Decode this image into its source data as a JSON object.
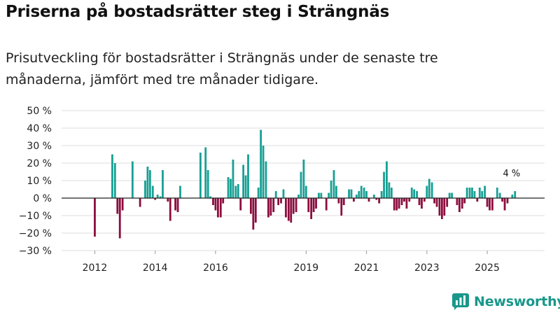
{
  "title": "Priserna på bostadsrätter steg i Strängnäs",
  "subtitle": "Prisutveckling för bostadsrätter i Strängnäs under de senaste tre månaderna, jämfört med tre månader tidigare.",
  "brand": {
    "name": "Newsworthy"
  },
  "colors": {
    "positive": "#17a094",
    "negative": "#8c0d3e",
    "grid": "#dedede",
    "zero": "#222222"
  },
  "chart_data": {
    "type": "bar",
    "title": "Priserna på bostadsrätter steg i Strängnäs",
    "xlabel": "",
    "ylabel": "",
    "ylim": [
      -30,
      50
    ],
    "y_ticks": [
      {
        "value": 50,
        "label": "50 %"
      },
      {
        "value": 40,
        "label": "40 %"
      },
      {
        "value": 30,
        "label": "30 %"
      },
      {
        "value": 20,
        "label": "20 %"
      },
      {
        "value": 10,
        "label": "10 %"
      },
      {
        "value": 0,
        "label": "0 %"
      },
      {
        "value": -10,
        "label": "−10 %"
      },
      {
        "value": -20,
        "label": "−20 %"
      },
      {
        "value": -30,
        "label": "−30 %"
      }
    ],
    "x_range": [
      2010.9,
      2026.9
    ],
    "x_ticks": [
      {
        "value": 2012,
        "label": "2012"
      },
      {
        "value": 2014,
        "label": "2014"
      },
      {
        "value": 2016,
        "label": "2016"
      },
      {
        "value": 2019,
        "label": "2019"
      },
      {
        "value": 2021,
        "label": "2021"
      },
      {
        "value": 2023,
        "label": "2023"
      },
      {
        "value": 2025,
        "label": "2025"
      }
    ],
    "annotation": {
      "label": "4 %",
      "x": 2025.83,
      "value": 4
    },
    "series": [
      {
        "name": "Prisutveckling",
        "points": [
          [
            2012.0,
            -22
          ],
          [
            2012.58,
            25
          ],
          [
            2012.67,
            20
          ],
          [
            2012.75,
            -9
          ],
          [
            2012.83,
            -23
          ],
          [
            2012.92,
            -7
          ],
          [
            2013.25,
            21
          ],
          [
            2013.5,
            -5
          ],
          [
            2013.67,
            10
          ],
          [
            2013.75,
            18
          ],
          [
            2013.83,
            16
          ],
          [
            2013.92,
            7
          ],
          [
            2014.0,
            -1
          ],
          [
            2014.08,
            2
          ],
          [
            2014.17,
            1
          ],
          [
            2014.25,
            16
          ],
          [
            2014.42,
            -2
          ],
          [
            2014.5,
            -13
          ],
          [
            2014.67,
            -7
          ],
          [
            2014.75,
            -8
          ],
          [
            2014.83,
            7
          ],
          [
            2015.5,
            26
          ],
          [
            2015.67,
            29
          ],
          [
            2015.75,
            16
          ],
          [
            2015.83,
            1
          ],
          [
            2015.92,
            -4
          ],
          [
            2016.0,
            -7
          ],
          [
            2016.08,
            -11
          ],
          [
            2016.17,
            -11
          ],
          [
            2016.25,
            -3
          ],
          [
            2016.42,
            12
          ],
          [
            2016.5,
            11
          ],
          [
            2016.58,
            22
          ],
          [
            2016.67,
            7
          ],
          [
            2016.75,
            8
          ],
          [
            2016.83,
            -7
          ],
          [
            2016.92,
            19
          ],
          [
            2017.0,
            13
          ],
          [
            2017.08,
            25
          ],
          [
            2017.17,
            -9
          ],
          [
            2017.25,
            -18
          ],
          [
            2017.33,
            -14
          ],
          [
            2017.42,
            6
          ],
          [
            2017.5,
            39
          ],
          [
            2017.58,
            30
          ],
          [
            2017.67,
            21
          ],
          [
            2017.75,
            -11
          ],
          [
            2017.83,
            -10
          ],
          [
            2017.92,
            -8
          ],
          [
            2018.0,
            4
          ],
          [
            2018.08,
            -4
          ],
          [
            2018.17,
            -3
          ],
          [
            2018.25,
            5
          ],
          [
            2018.33,
            -11
          ],
          [
            2018.42,
            -13
          ],
          [
            2018.5,
            -14
          ],
          [
            2018.58,
            -9
          ],
          [
            2018.67,
            -8
          ],
          [
            2018.75,
            2
          ],
          [
            2018.83,
            15
          ],
          [
            2018.92,
            22
          ],
          [
            2019.0,
            7
          ],
          [
            2019.08,
            -8
          ],
          [
            2019.17,
            -12
          ],
          [
            2019.25,
            -8
          ],
          [
            2019.33,
            -6
          ],
          [
            2019.42,
            3
          ],
          [
            2019.5,
            3
          ],
          [
            2019.67,
            -7
          ],
          [
            2019.75,
            3
          ],
          [
            2019.83,
            10
          ],
          [
            2019.92,
            16
          ],
          [
            2020.0,
            7
          ],
          [
            2020.08,
            -3
          ],
          [
            2020.17,
            -10
          ],
          [
            2020.25,
            -4
          ],
          [
            2020.42,
            5
          ],
          [
            2020.5,
            5
          ],
          [
            2020.58,
            -2
          ],
          [
            2020.67,
            2
          ],
          [
            2020.75,
            4
          ],
          [
            2020.83,
            7
          ],
          [
            2020.92,
            6
          ],
          [
            2021.0,
            4
          ],
          [
            2021.08,
            -2
          ],
          [
            2021.25,
            2
          ],
          [
            2021.33,
            -1
          ],
          [
            2021.42,
            -3
          ],
          [
            2021.5,
            4
          ],
          [
            2021.58,
            15
          ],
          [
            2021.67,
            21
          ],
          [
            2021.75,
            9
          ],
          [
            2021.83,
            6
          ],
          [
            2021.92,
            -7
          ],
          [
            2022.0,
            -7
          ],
          [
            2022.08,
            -6
          ],
          [
            2022.17,
            -4
          ],
          [
            2022.25,
            -2
          ],
          [
            2022.33,
            -6
          ],
          [
            2022.42,
            -2
          ],
          [
            2022.5,
            6
          ],
          [
            2022.58,
            5
          ],
          [
            2022.67,
            4
          ],
          [
            2022.75,
            -4
          ],
          [
            2022.83,
            -6
          ],
          [
            2022.92,
            -2
          ],
          [
            2023.0,
            7
          ],
          [
            2023.08,
            11
          ],
          [
            2023.17,
            9
          ],
          [
            2023.25,
            -3
          ],
          [
            2023.33,
            -5
          ],
          [
            2023.42,
            -10
          ],
          [
            2023.5,
            -12
          ],
          [
            2023.58,
            -10
          ],
          [
            2023.67,
            -5
          ],
          [
            2023.75,
            3
          ],
          [
            2023.83,
            3
          ],
          [
            2024.0,
            -4
          ],
          [
            2024.08,
            -8
          ],
          [
            2024.17,
            -6
          ],
          [
            2024.25,
            -3
          ],
          [
            2024.33,
            6
          ],
          [
            2024.42,
            6
          ],
          [
            2024.5,
            6
          ],
          [
            2024.58,
            4
          ],
          [
            2024.67,
            -2
          ],
          [
            2024.75,
            6
          ],
          [
            2024.83,
            4
          ],
          [
            2024.92,
            7
          ],
          [
            2025.0,
            -5
          ],
          [
            2025.08,
            -7
          ],
          [
            2025.17,
            -7
          ],
          [
            2025.33,
            6
          ],
          [
            2025.42,
            3
          ],
          [
            2025.5,
            -2
          ],
          [
            2025.58,
            -7
          ],
          [
            2025.67,
            -3
          ],
          [
            2025.83,
            2
          ],
          [
            2025.92,
            4
          ]
        ]
      }
    ]
  }
}
